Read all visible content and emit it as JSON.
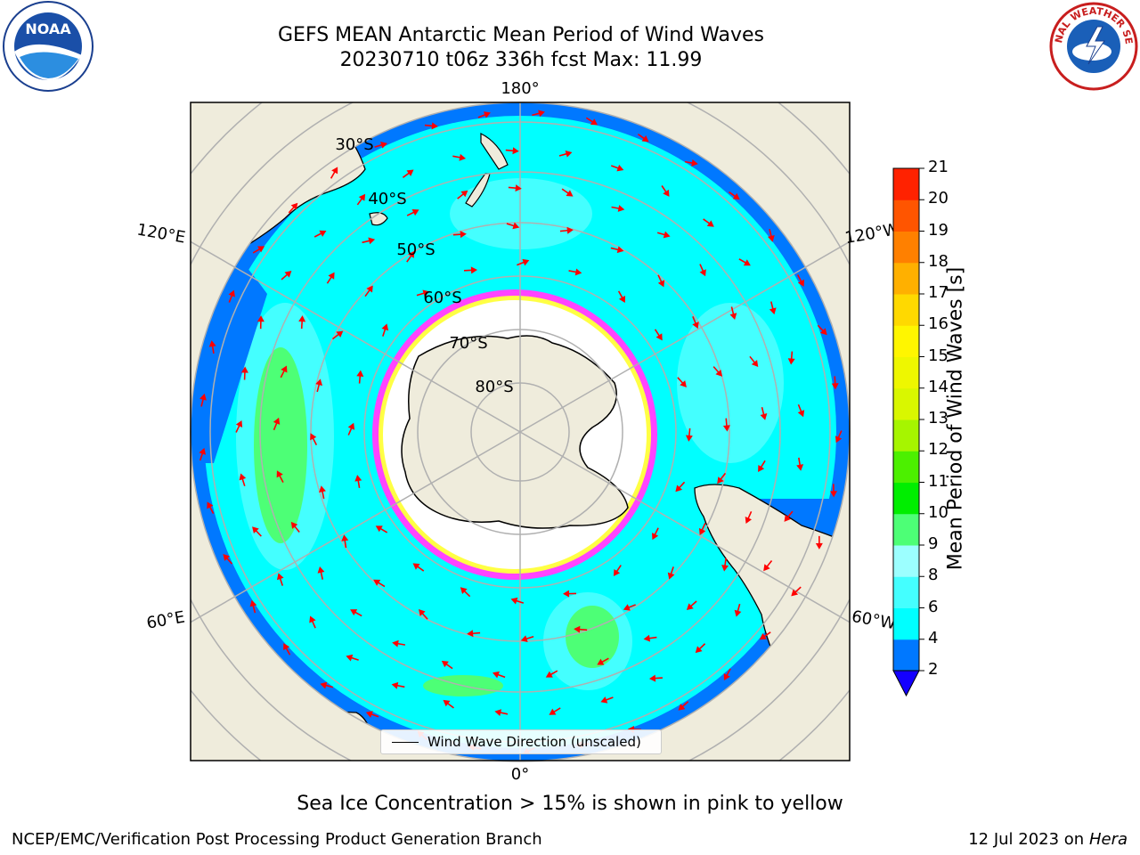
{
  "header": {
    "title_line1": "GEFS MEAN Antarctic Mean Period of Wind Waves",
    "title_line2": "20230710 t06z 336h fcst   Max: 11.99"
  },
  "logos": {
    "left_text": "NOAA",
    "right_text": "NATIONAL WEATHER SERVICE"
  },
  "map": {
    "meridian_labels": {
      "top": "180°",
      "bottom": "0°",
      "upper_left": "120°E",
      "lower_left": "60°E",
      "upper_right": "120°W",
      "lower_right": "60°W"
    },
    "latitude_labels": [
      "30°S",
      "40°S",
      "50°S",
      "60°S",
      "70°S",
      "80°S"
    ],
    "legend_label": "Wind Wave Direction (unscaled)",
    "colors": {
      "land": "#efecdc",
      "ocean_main": "#00ffff",
      "ocean_low": "#0078ff",
      "ocean_mid": "#44ffff",
      "ocean_light": "#9cffff",
      "ocean_green": "#4dff76",
      "ice_pink": "#ff44ff",
      "ice_yellow": "#ffff00",
      "arrow": "#ff0000",
      "grid": "#b0b0b0"
    }
  },
  "colorbar": {
    "title": "Mean Period of Wind Waves [s]",
    "ticks": [
      2,
      4,
      6,
      8,
      9,
      10,
      11,
      12,
      13,
      14,
      15,
      16,
      17,
      18,
      19,
      20,
      21
    ],
    "colors": [
      "#0078ff",
      "#00ffff",
      "#44ffff",
      "#9cffff",
      "#4dff76",
      "#00ee00",
      "#4cf000",
      "#a6f500",
      "#d9f700",
      "#eef700",
      "#fff600",
      "#ffd900",
      "#ffb000",
      "#ff8000",
      "#ff5500",
      "#ff2200",
      "#ff0000"
    ],
    "under_color": "#1400ff"
  },
  "caption": "Sea Ice Concentration > 15% is shown in pink to yellow",
  "footer": {
    "left": "NCEP/EMC/Verification Post Processing Product Generation Branch",
    "right_prefix": "12 Jul 2023 on ",
    "right_italic": "Hera"
  }
}
